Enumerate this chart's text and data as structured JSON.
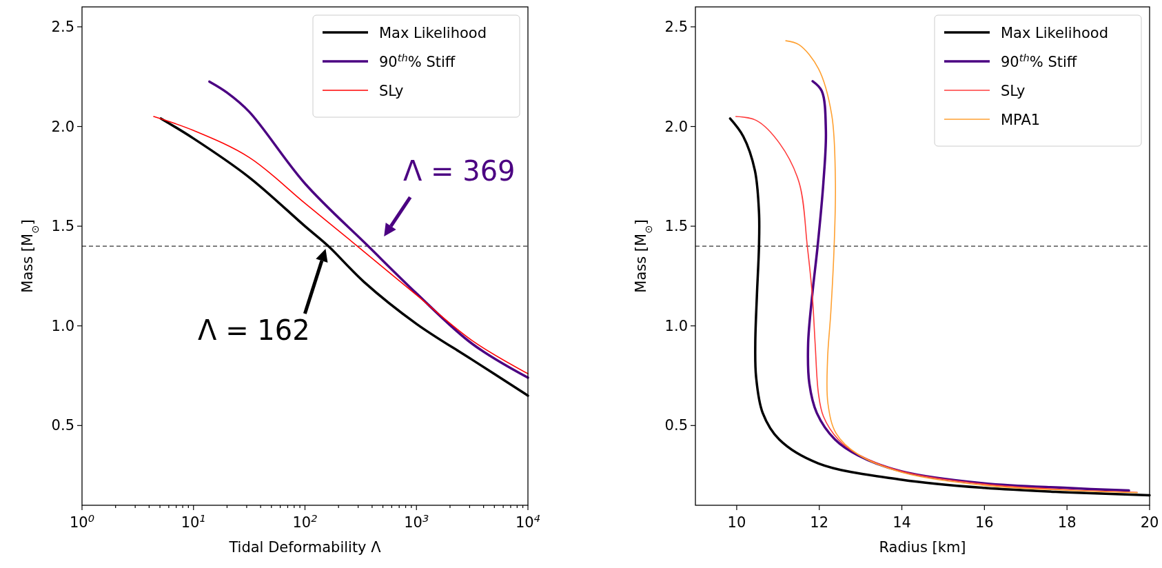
{
  "chart_data": [
    {
      "type": "line",
      "xlabel": "Tidal Deformability Λ",
      "ylabel": "Mass [M$_{⊙}$]",
      "log": "x",
      "xlim": [
        1,
        10000
      ],
      "ylim": [
        0.1,
        2.6
      ],
      "xticks": [
        {
          "value": 1,
          "label": "10$^{0}$"
        },
        {
          "value": 2,
          "label": null
        },
        {
          "value": 3,
          "label": null
        },
        {
          "value": 4,
          "label": null
        },
        {
          "value": 5,
          "label": null
        },
        {
          "value": 6,
          "label": null
        },
        {
          "value": 7,
          "label": null
        },
        {
          "value": 8,
          "label": null
        },
        {
          "value": 9,
          "label": null
        },
        {
          "value": 10,
          "label": "10$^{1}$"
        },
        {
          "value": 20,
          "label": null
        },
        {
          "value": 30,
          "label": null
        },
        {
          "value": 40,
          "label": null
        },
        {
          "value": 50,
          "label": null
        },
        {
          "value": 60,
          "label": null
        },
        {
          "value": 70,
          "label": null
        },
        {
          "value": 80,
          "label": null
        },
        {
          "value": 90,
          "label": null
        },
        {
          "value": 100,
          "label": "10$^{2}$"
        },
        {
          "value": 200,
          "label": null
        },
        {
          "value": 300,
          "label": null
        },
        {
          "value": 400,
          "label": null
        },
        {
          "value": 500,
          "label": null
        },
        {
          "value": 600,
          "label": null
        },
        {
          "value": 700,
          "label": null
        },
        {
          "value": 800,
          "label": null
        },
        {
          "value": 900,
          "label": null
        },
        {
          "value": 1000,
          "label": "10$^{3}$"
        },
        {
          "value": 2000,
          "label": null
        },
        {
          "value": 3000,
          "label": null
        },
        {
          "value": 4000,
          "label": null
        },
        {
          "value": 5000,
          "label": null
        },
        {
          "value": 6000,
          "label": null
        },
        {
          "value": 7000,
          "label": null
        },
        {
          "value": 8000,
          "label": null
        },
        {
          "value": 9000,
          "label": null
        },
        {
          "value": 10000,
          "label": "10$^{4}$"
        }
      ],
      "yticks": [
        {
          "value": 0.5,
          "label": "0.5"
        },
        {
          "value": 1,
          "label": "1.0"
        },
        {
          "value": 1.5,
          "label": "1.5"
        },
        {
          "value": 2,
          "label": "2.0"
        },
        {
          "value": 2.5,
          "label": "2.5"
        }
      ],
      "legend": "top right",
      "grid": false,
      "series": [
        {
          "name": "Max Likelihood",
          "color": "#000000",
          "x": [
            5.1,
            10,
            31.6,
            100,
            162,
            339,
            1000,
            3162,
            10000
          ],
          "values": [
            2.04,
            1.94,
            1.745,
            1.5,
            1.4,
            1.22,
            1.01,
            0.83,
            0.65
          ]
        },
        {
          "name": "90$^{th}$% Stiff",
          "color": "#4b0082",
          "x": [
            13.9,
            20,
            31.6,
            100,
            369,
            1000,
            3162,
            10000
          ],
          "values": [
            2.225,
            2.17,
            2.074,
            1.714,
            1.4,
            1.163,
            0.91,
            0.74
          ]
        },
        {
          "name": "SLy",
          "color": "#ff0000",
          "x": [
            4.4,
            10,
            31.6,
            100,
            295,
            1000,
            3162,
            10000
          ],
          "values": [
            2.05,
            1.98,
            1.845,
            1.615,
            1.4,
            1.155,
            0.926,
            0.76
          ]
        }
      ],
      "ref_lines": [
        {
          "axis": "y",
          "value": 1.4,
          "color": "#333333",
          "line_style": "dashed"
        }
      ],
      "annotations": [
        {
          "text": "Λ = 369",
          "x": 369,
          "y": 1.4
        },
        {
          "text": "Λ = 162",
          "x": 162,
          "y": 1.4
        }
      ]
    },
    {
      "type": "line",
      "xlabel": "Radius [km]",
      "ylabel": "Mass [M$_{⊙}$]",
      "xlim": [
        9,
        20
      ],
      "ylim": [
        0.1,
        2.6
      ],
      "xticks": [
        10,
        12,
        14,
        16,
        18,
        20
      ],
      "yticks": [
        {
          "value": 0.5,
          "label": "0.5"
        },
        {
          "value": 1,
          "label": "1.0"
        },
        {
          "value": 1.5,
          "label": "1.5"
        },
        {
          "value": 2,
          "label": "2.0"
        },
        {
          "value": 2.5,
          "label": "2.5"
        }
      ],
      "legend": "top right",
      "grid": false,
      "series": [
        {
          "name": "Max Likelihood",
          "color": "#000000",
          "x": [
            9.84,
            10.16,
            10.44,
            10.54,
            10.54,
            10.49,
            10.45,
            10.47,
            10.63,
            11.03,
            11.98,
            14,
            16,
            18,
            20
          ],
          "values": [
            2.04,
            1.95,
            1.78,
            1.57,
            1.4,
            1.156,
            0.91,
            0.743,
            0.563,
            0.43,
            0.31,
            0.228,
            0.187,
            0.165,
            0.15
          ]
        },
        {
          "name": "90$^{th}$% Stiff",
          "color": "#4b0082",
          "x": [
            11.84,
            12.06,
            12.16,
            12.1,
            11.96,
            11.83,
            11.73,
            11.76,
            11.94,
            12.38,
            12.94,
            14,
            16,
            18,
            19.5
          ],
          "values": [
            2.227,
            2.178,
            1.98,
            1.72,
            1.4,
            1.156,
            0.91,
            0.71,
            0.563,
            0.43,
            0.35,
            0.27,
            0.21,
            0.187,
            0.174
          ]
        },
        {
          "name": "SLy",
          "color": "#ff3b3b",
          "x": [
            9.98,
            10.48,
            11.04,
            11.51,
            11.71,
            11.83,
            11.9,
            11.98,
            12.1,
            12.46,
            12.94,
            14,
            16,
            18,
            19.7
          ],
          "values": [
            2.05,
            2.03,
            1.915,
            1.72,
            1.4,
            1.156,
            0.91,
            0.66,
            0.546,
            0.43,
            0.355,
            0.27,
            0.206,
            0.178,
            0.165
          ]
        },
        {
          "name": "MPA1",
          "color": "#ffa030",
          "x": [
            11.19,
            11.51,
            11.98,
            12.3,
            12.39,
            12.36,
            12.28,
            12.2,
            12.21,
            12.41,
            12.94,
            14,
            16,
            18,
            19.7
          ],
          "values": [
            2.43,
            2.41,
            2.29,
            2.06,
            1.73,
            1.4,
            1.07,
            0.83,
            0.61,
            0.46,
            0.355,
            0.265,
            0.2,
            0.175,
            0.163
          ]
        }
      ],
      "ref_lines": [
        {
          "axis": "y",
          "value": 1.4,
          "color": "#333333",
          "line_style": "dashed"
        }
      ]
    }
  ]
}
